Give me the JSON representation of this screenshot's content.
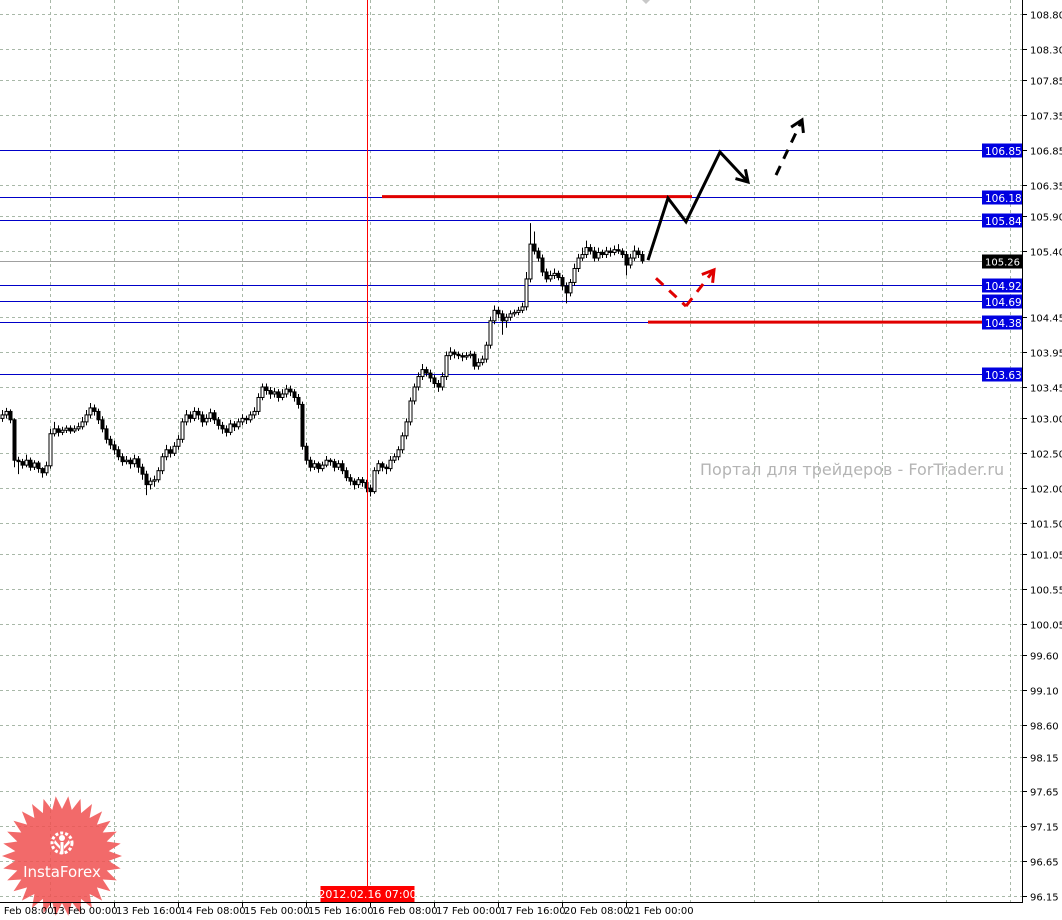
{
  "chart_data": {
    "type": "candlestick",
    "timeframe_note": "",
    "ylim": [
      96.15,
      108.8
    ],
    "grid": true,
    "price_ticks": [
      "108.80",
      "108.30",
      "107.85",
      "107.35",
      "106.85",
      "106.35",
      "105.90",
      "105.40",
      "104.45",
      "103.95",
      "103.45",
      "103.00",
      "102.50",
      "102.00",
      "101.50",
      "101.05",
      "100.55",
      "100.05",
      "99.60",
      "99.10",
      "98.60",
      "98.15",
      "97.65",
      "97.15",
      "96.65",
      "96.15"
    ],
    "time_labels": [
      "12 Feb 08:00",
      "13 Feb 00:00",
      "13 Feb 16:00",
      "14 Feb 08:00",
      "15 Feb 00:00",
      "15 Feb 16:00",
      "16 Feb 08:00",
      "17 Feb 00:00",
      "17 Feb 16:00",
      "20 Feb 08:00",
      "21 Feb 00:00"
    ],
    "cursor_time_label": "2012.02.16 07:00",
    "cursor_bar": 91,
    "current_price": "105.26",
    "levels": [
      {
        "price": 106.85,
        "label": "106.85"
      },
      {
        "price": 106.18,
        "label": "106.18"
      },
      {
        "price": 105.84,
        "label": "105.84"
      },
      {
        "price": 104.92,
        "label": "104.92"
      },
      {
        "price": 104.69,
        "label": "104.69"
      },
      {
        "price": 104.38,
        "label": "104.38"
      },
      {
        "price": 103.63,
        "label": "103.63"
      }
    ],
    "red_level_segments": [
      {
        "price": 106.18,
        "from_bar": 95,
        "to_bar": 172.5
      },
      {
        "price": 104.38,
        "from_bar": 161.5,
        "to_bar": null
      }
    ],
    "forecast_paths": [
      {
        "color": "#000000",
        "dashed": false,
        "arrow": true,
        "points": [
          [
            161.5,
            105.27
          ],
          [
            166.5,
            106.16
          ],
          [
            171,
            105.82
          ],
          [
            179.5,
            106.82
          ],
          [
            186.5,
            106.39
          ]
        ]
      },
      {
        "color": "#000000",
        "dashed": true,
        "arrow": true,
        "points": [
          [
            193.5,
            106.49
          ],
          [
            200,
            107.28
          ]
        ]
      },
      {
        "color": "#e00000",
        "dashed": true,
        "arrow": false,
        "points": [
          [
            163.5,
            105.01
          ],
          [
            171,
            104.61
          ]
        ]
      },
      {
        "color": "#e00000",
        "dashed": true,
        "arrow": true,
        "points": [
          [
            171,
            104.61
          ],
          [
            178,
            105.13
          ]
        ]
      }
    ],
    "candles": [
      [
        103.0,
        103.12,
        102.95,
        103.05
      ],
      [
        103.05,
        103.15,
        103.0,
        103.1
      ],
      [
        103.1,
        103.13,
        102.93,
        102.98
      ],
      [
        102.98,
        103.0,
        102.3,
        102.4
      ],
      [
        102.4,
        102.45,
        102.2,
        102.38
      ],
      [
        102.38,
        102.42,
        102.28,
        102.33
      ],
      [
        102.33,
        102.48,
        102.3,
        102.4
      ],
      [
        102.4,
        102.44,
        102.25,
        102.3
      ],
      [
        102.3,
        102.4,
        102.26,
        102.36
      ],
      [
        102.36,
        102.39,
        102.22,
        102.28
      ],
      [
        102.28,
        102.3,
        102.15,
        102.22
      ],
      [
        102.22,
        102.38,
        102.18,
        102.32
      ],
      [
        102.32,
        102.85,
        102.28,
        102.78
      ],
      [
        102.78,
        102.95,
        102.74,
        102.85
      ],
      [
        102.85,
        102.9,
        102.74,
        102.8
      ],
      [
        102.8,
        102.88,
        102.76,
        102.83
      ],
      [
        102.83,
        102.9,
        102.79,
        102.86
      ],
      [
        102.86,
        102.9,
        102.78,
        102.82
      ],
      [
        102.82,
        102.9,
        102.79,
        102.85
      ],
      [
        102.85,
        102.94,
        102.82,
        102.88
      ],
      [
        102.88,
        103.02,
        102.84,
        102.95
      ],
      [
        102.95,
        103.12,
        102.9,
        103.05
      ],
      [
        103.05,
        103.22,
        103.0,
        103.15
      ],
      [
        103.15,
        103.2,
        103.04,
        103.1
      ],
      [
        103.1,
        103.14,
        102.92,
        102.98
      ],
      [
        102.98,
        103.03,
        102.8,
        102.85
      ],
      [
        102.85,
        102.9,
        102.64,
        102.7
      ],
      [
        102.7,
        102.75,
        102.56,
        102.62
      ],
      [
        102.62,
        102.68,
        102.48,
        102.55
      ],
      [
        102.55,
        102.6,
        102.4,
        102.45
      ],
      [
        102.45,
        102.5,
        102.32,
        102.38
      ],
      [
        102.38,
        102.46,
        102.34,
        102.4
      ],
      [
        102.4,
        102.44,
        102.28,
        102.35
      ],
      [
        102.35,
        102.48,
        102.3,
        102.42
      ],
      [
        102.42,
        102.46,
        102.22,
        102.3
      ],
      [
        102.3,
        102.35,
        102.12,
        102.2
      ],
      [
        102.2,
        102.25,
        101.9,
        102.05
      ],
      [
        102.05,
        102.15,
        101.98,
        102.1
      ],
      [
        102.1,
        102.18,
        102.02,
        102.12
      ],
      [
        102.12,
        102.3,
        102.08,
        102.25
      ],
      [
        102.25,
        102.5,
        102.2,
        102.45
      ],
      [
        102.45,
        102.62,
        102.4,
        102.55
      ],
      [
        102.55,
        102.6,
        102.44,
        102.5
      ],
      [
        102.5,
        102.66,
        102.46,
        102.6
      ],
      [
        102.6,
        102.76,
        102.55,
        102.7
      ],
      [
        102.7,
        103.0,
        102.65,
        102.95
      ],
      [
        102.95,
        103.12,
        102.9,
        103.05
      ],
      [
        103.05,
        103.1,
        102.94,
        103.0
      ],
      [
        103.0,
        103.16,
        102.96,
        103.1
      ],
      [
        103.1,
        103.15,
        102.98,
        103.05
      ],
      [
        103.05,
        103.1,
        102.88,
        102.95
      ],
      [
        102.95,
        103.06,
        102.9,
        103.0
      ],
      [
        103.0,
        103.14,
        102.95,
        103.08
      ],
      [
        103.08,
        103.12,
        102.92,
        102.98
      ],
      [
        102.98,
        103.02,
        102.84,
        102.9
      ],
      [
        102.9,
        102.95,
        102.78,
        102.85
      ],
      [
        102.85,
        102.9,
        102.74,
        102.8
      ],
      [
        102.8,
        102.98,
        102.76,
        102.92
      ],
      [
        102.92,
        102.96,
        102.82,
        102.88
      ],
      [
        102.88,
        103.0,
        102.84,
        102.95
      ],
      [
        102.95,
        103.06,
        102.9,
        103.0
      ],
      [
        103.0,
        103.04,
        102.92,
        102.98
      ],
      [
        102.98,
        103.1,
        102.94,
        103.05
      ],
      [
        103.05,
        103.16,
        103.0,
        103.1
      ],
      [
        103.1,
        103.36,
        103.05,
        103.3
      ],
      [
        103.3,
        103.5,
        103.26,
        103.45
      ],
      [
        103.45,
        103.5,
        103.34,
        103.4
      ],
      [
        103.4,
        103.45,
        103.28,
        103.35
      ],
      [
        103.35,
        103.44,
        103.3,
        103.38
      ],
      [
        103.38,
        103.42,
        103.24,
        103.3
      ],
      [
        103.3,
        103.42,
        103.26,
        103.35
      ],
      [
        103.35,
        103.48,
        103.3,
        103.42
      ],
      [
        103.42,
        103.47,
        103.32,
        103.38
      ],
      [
        103.38,
        103.42,
        103.24,
        103.3
      ],
      [
        103.3,
        103.35,
        103.14,
        103.2
      ],
      [
        103.2,
        103.24,
        102.55,
        102.6
      ],
      [
        102.6,
        102.65,
        102.34,
        102.4
      ],
      [
        102.4,
        102.45,
        102.24,
        102.3
      ],
      [
        102.3,
        102.4,
        102.26,
        102.35
      ],
      [
        102.35,
        102.38,
        102.22,
        102.28
      ],
      [
        102.28,
        102.38,
        102.24,
        102.33
      ],
      [
        102.33,
        102.46,
        102.3,
        102.4
      ],
      [
        102.4,
        102.43,
        102.32,
        102.38
      ],
      [
        102.38,
        102.42,
        102.24,
        102.3
      ],
      [
        102.3,
        102.4,
        102.26,
        102.35
      ],
      [
        102.35,
        102.4,
        102.2,
        102.25
      ],
      [
        102.25,
        102.3,
        102.1,
        102.15
      ],
      [
        102.15,
        102.2,
        102.04,
        102.1
      ],
      [
        102.1,
        102.14,
        101.98,
        102.05
      ],
      [
        102.05,
        102.16,
        102.0,
        102.12
      ],
      [
        102.12,
        102.16,
        102.02,
        102.08
      ],
      [
        102.08,
        102.12,
        101.94,
        102.0
      ],
      [
        102.0,
        102.05,
        101.88,
        101.95
      ],
      [
        101.95,
        102.3,
        101.92,
        102.25
      ],
      [
        102.25,
        102.4,
        102.2,
        102.35
      ],
      [
        102.35,
        102.38,
        102.24,
        102.3
      ],
      [
        102.3,
        102.34,
        102.2,
        102.28
      ],
      [
        102.28,
        102.46,
        102.24,
        102.4
      ],
      [
        102.4,
        102.5,
        102.36,
        102.45
      ],
      [
        102.45,
        102.6,
        102.4,
        102.55
      ],
      [
        102.55,
        102.8,
        102.5,
        102.75
      ],
      [
        102.75,
        103.0,
        102.7,
        102.95
      ],
      [
        102.95,
        103.3,
        102.9,
        103.25
      ],
      [
        103.25,
        103.5,
        103.2,
        103.45
      ],
      [
        103.45,
        103.66,
        103.4,
        103.6
      ],
      [
        103.6,
        103.78,
        103.55,
        103.7
      ],
      [
        103.7,
        103.74,
        103.6,
        103.65
      ],
      [
        103.65,
        103.7,
        103.52,
        103.58
      ],
      [
        103.58,
        103.62,
        103.44,
        103.5
      ],
      [
        103.5,
        103.55,
        103.38,
        103.45
      ],
      [
        103.45,
        103.66,
        103.4,
        103.6
      ],
      [
        103.6,
        103.96,
        103.55,
        103.9
      ],
      [
        103.9,
        104.02,
        103.84,
        103.95
      ],
      [
        103.95,
        103.99,
        103.86,
        103.92
      ],
      [
        103.92,
        103.96,
        103.85,
        103.9
      ],
      [
        103.9,
        103.94,
        103.82,
        103.88
      ],
      [
        103.88,
        103.95,
        103.84,
        103.9
      ],
      [
        103.9,
        103.97,
        103.86,
        103.92
      ],
      [
        103.92,
        103.96,
        103.7,
        103.75
      ],
      [
        103.75,
        103.86,
        103.7,
        103.8
      ],
      [
        103.8,
        103.9,
        103.76,
        103.85
      ],
      [
        103.85,
        104.1,
        103.8,
        104.05
      ],
      [
        104.05,
        104.46,
        104.0,
        104.4
      ],
      [
        104.4,
        104.62,
        104.35,
        104.55
      ],
      [
        104.55,
        104.6,
        104.44,
        104.5
      ],
      [
        104.5,
        104.55,
        104.2,
        104.4
      ],
      [
        104.4,
        104.5,
        104.3,
        104.45
      ],
      [
        104.45,
        104.55,
        104.4,
        104.5
      ],
      [
        104.5,
        104.56,
        104.46,
        104.52
      ],
      [
        104.52,
        104.6,
        104.48,
        104.55
      ],
      [
        104.55,
        104.66,
        104.51,
        104.6
      ],
      [
        104.6,
        105.1,
        104.55,
        105.0
      ],
      [
        105.0,
        105.8,
        104.95,
        105.5
      ],
      [
        105.5,
        105.68,
        105.35,
        105.4
      ],
      [
        105.4,
        105.45,
        105.25,
        105.3
      ],
      [
        105.3,
        105.35,
        105.04,
        105.1
      ],
      [
        105.1,
        105.15,
        104.95,
        105.0
      ],
      [
        105.0,
        105.12,
        104.96,
        105.05
      ],
      [
        105.05,
        105.15,
        105.0,
        105.08
      ],
      [
        105.08,
        105.12,
        104.98,
        105.02
      ],
      [
        105.02,
        105.06,
        104.84,
        104.9
      ],
      [
        104.9,
        104.95,
        104.65,
        104.8
      ],
      [
        104.8,
        105.0,
        104.75,
        104.95
      ],
      [
        104.95,
        105.22,
        104.9,
        105.15
      ],
      [
        105.15,
        105.36,
        105.1,
        105.3
      ],
      [
        105.3,
        105.45,
        105.26,
        105.35
      ],
      [
        105.35,
        105.55,
        105.3,
        105.45
      ],
      [
        105.45,
        105.5,
        105.35,
        105.4
      ],
      [
        105.4,
        105.46,
        105.25,
        105.3
      ],
      [
        105.3,
        105.45,
        105.26,
        105.38
      ],
      [
        105.38,
        105.42,
        105.3,
        105.35
      ],
      [
        105.35,
        105.46,
        105.3,
        105.4
      ],
      [
        105.4,
        105.45,
        105.32,
        105.38
      ],
      [
        105.38,
        105.48,
        105.34,
        105.42
      ],
      [
        105.42,
        105.5,
        105.36,
        105.4
      ],
      [
        105.4,
        105.44,
        105.3,
        105.35
      ],
      [
        105.35,
        105.4,
        105.05,
        105.2
      ],
      [
        105.2,
        105.36,
        105.15,
        105.3
      ],
      [
        105.3,
        105.48,
        105.26,
        105.4
      ],
      [
        105.4,
        105.45,
        105.3,
        105.35
      ],
      [
        105.35,
        105.4,
        105.22,
        105.26
      ]
    ],
    "colors": {
      "level_line": "#0000c8",
      "level_label_bg": "#0000e0",
      "current_price_bg": "#000000",
      "cursor_line": "#ff0000",
      "red_level": "#e00000",
      "grid": "#a8b8a8"
    }
  },
  "watermark": "Портал для трейдеров - ForTrader.ru",
  "logo": {
    "text": "InstaForex",
    "color": "#f05050"
  }
}
